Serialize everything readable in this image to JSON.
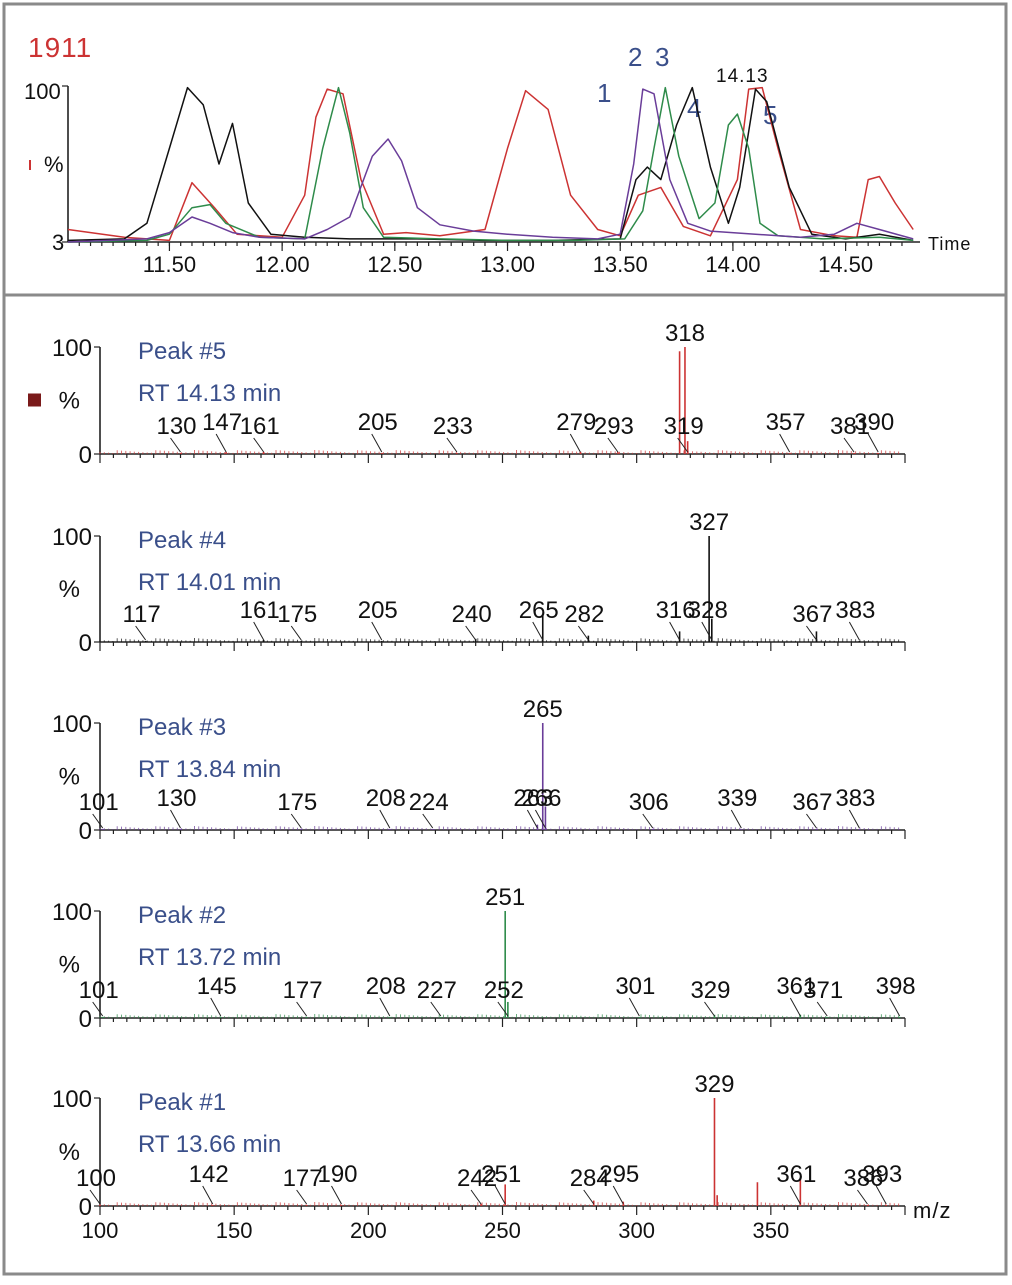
{
  "frame": {
    "border_color": "#8a8a8a"
  },
  "chromatogram": {
    "title": "1911",
    "title_color": "#cc3333",
    "y_top_label": "100",
    "y_mid_label": "%",
    "y_bottom_label": "3",
    "x_axis_label": "Time",
    "peak_number_labels": [
      "1",
      "2",
      "3",
      "4",
      "5"
    ],
    "apex_label": "14.13"
  },
  "chart_data": [
    {
      "type": "line",
      "xlabel": "Time",
      "ylabel": "%",
      "xlim": [
        11.05,
        14.83
      ],
      "ylim": [
        0,
        100
      ],
      "x_ticks": [
        "11.50",
        "12.00",
        "12.50",
        "13.00",
        "13.50",
        "14.00",
        "14.50"
      ],
      "x_tick_values": [
        11.5,
        12.0,
        12.5,
        13.0,
        13.5,
        14.0,
        14.5
      ],
      "series": [
        {
          "color": "#cc3333",
          "points": [
            [
              11.05,
              8
            ],
            [
              11.3,
              3
            ],
            [
              11.5,
              1
            ],
            [
              11.6,
              38
            ],
            [
              11.7,
              22
            ],
            [
              11.8,
              5
            ],
            [
              12.0,
              3
            ],
            [
              12.1,
              30
            ],
            [
              12.15,
              80
            ],
            [
              12.2,
              98
            ],
            [
              12.27,
              95
            ],
            [
              12.35,
              40
            ],
            [
              12.45,
              5
            ],
            [
              12.55,
              6
            ],
            [
              12.7,
              4
            ],
            [
              12.9,
              8
            ],
            [
              13.0,
              60
            ],
            [
              13.08,
              97
            ],
            [
              13.18,
              85
            ],
            [
              13.28,
              30
            ],
            [
              13.4,
              8
            ],
            [
              13.5,
              4
            ],
            [
              13.58,
              30
            ],
            [
              13.68,
              35
            ],
            [
              13.78,
              10
            ],
            [
              13.9,
              4
            ],
            [
              14.02,
              40
            ],
            [
              14.07,
              98
            ],
            [
              14.13,
              99
            ],
            [
              14.2,
              60
            ],
            [
              14.3,
              8
            ],
            [
              14.45,
              4
            ],
            [
              14.55,
              3
            ],
            [
              14.6,
              40
            ],
            [
              14.65,
              42
            ],
            [
              14.72,
              25
            ],
            [
              14.8,
              8
            ]
          ]
        },
        {
          "color": "#111111",
          "points": [
            [
              11.05,
              1
            ],
            [
              11.3,
              2
            ],
            [
              11.4,
              12
            ],
            [
              11.5,
              60
            ],
            [
              11.58,
              99
            ],
            [
              11.65,
              88
            ],
            [
              11.72,
              50
            ],
            [
              11.78,
              76
            ],
            [
              11.85,
              25
            ],
            [
              11.95,
              5
            ],
            [
              12.1,
              3
            ],
            [
              12.3,
              2
            ],
            [
              12.6,
              2
            ],
            [
              12.9,
              1
            ],
            [
              13.2,
              1
            ],
            [
              13.5,
              2
            ],
            [
              13.57,
              40
            ],
            [
              13.62,
              48
            ],
            [
              13.68,
              40
            ],
            [
              13.75,
              75
            ],
            [
              13.82,
              99
            ],
            [
              13.9,
              48
            ],
            [
              13.98,
              12
            ],
            [
              14.03,
              35
            ],
            [
              14.1,
              98
            ],
            [
              14.15,
              90
            ],
            [
              14.25,
              35
            ],
            [
              14.35,
              5
            ],
            [
              14.5,
              2
            ],
            [
              14.65,
              5
            ],
            [
              14.8,
              1
            ]
          ]
        },
        {
          "color": "#2e8b4a",
          "points": [
            [
              11.05,
              0
            ],
            [
              11.4,
              1
            ],
            [
              11.5,
              5
            ],
            [
              11.6,
              22
            ],
            [
              11.68,
              24
            ],
            [
              11.75,
              12
            ],
            [
              11.9,
              3
            ],
            [
              12.1,
              2
            ],
            [
              12.18,
              60
            ],
            [
              12.25,
              99
            ],
            [
              12.3,
              70
            ],
            [
              12.36,
              22
            ],
            [
              12.45,
              3
            ],
            [
              12.7,
              2
            ],
            [
              13.0,
              1
            ],
            [
              13.3,
              1
            ],
            [
              13.52,
              2
            ],
            [
              13.6,
              20
            ],
            [
              13.65,
              60
            ],
            [
              13.7,
              99
            ],
            [
              13.76,
              55
            ],
            [
              13.85,
              15
            ],
            [
              13.92,
              25
            ],
            [
              13.98,
              75
            ],
            [
              14.02,
              82
            ],
            [
              14.07,
              60
            ],
            [
              14.12,
              12
            ],
            [
              14.2,
              4
            ],
            [
              14.4,
              2
            ],
            [
              14.65,
              3
            ],
            [
              14.8,
              1
            ]
          ]
        },
        {
          "color": "#6a3d99",
          "points": [
            [
              11.05,
              0
            ],
            [
              11.4,
              2
            ],
            [
              11.5,
              6
            ],
            [
              11.6,
              16
            ],
            [
              11.68,
              12
            ],
            [
              11.78,
              6
            ],
            [
              11.9,
              3
            ],
            [
              12.1,
              2
            ],
            [
              12.2,
              8
            ],
            [
              12.3,
              16
            ],
            [
              12.4,
              55
            ],
            [
              12.47,
              66
            ],
            [
              12.53,
              52
            ],
            [
              12.6,
              22
            ],
            [
              12.7,
              11
            ],
            [
              12.85,
              7
            ],
            [
              13.0,
              5
            ],
            [
              13.2,
              3
            ],
            [
              13.4,
              2
            ],
            [
              13.5,
              5
            ],
            [
              13.56,
              50
            ],
            [
              13.6,
              98
            ],
            [
              13.65,
              95
            ],
            [
              13.72,
              40
            ],
            [
              13.8,
              12
            ],
            [
              13.9,
              7
            ],
            [
              14.1,
              5
            ],
            [
              14.3,
              3
            ],
            [
              14.45,
              5
            ],
            [
              14.55,
              12
            ],
            [
              14.65,
              8
            ],
            [
              14.8,
              2
            ]
          ]
        }
      ]
    },
    {
      "type": "bar",
      "label": "Peak #5",
      "rt": "RT 14.13 min",
      "color": "#cc3333",
      "ylabel": "%",
      "xlim": [
        100,
        400
      ],
      "ylim": [
        0,
        100
      ],
      "y_ticks": [
        "100",
        "%",
        "0"
      ],
      "peaks": [
        [
          130,
          1
        ],
        [
          147,
          2
        ],
        [
          161,
          2
        ],
        [
          205,
          1
        ],
        [
          233,
          1
        ],
        [
          279,
          2
        ],
        [
          293,
          2
        ],
        [
          318,
          100
        ],
        [
          316,
          96
        ],
        [
          319,
          12
        ],
        [
          357,
          1
        ],
        [
          381,
          1
        ],
        [
          390,
          1
        ]
      ],
      "labels": [
        {
          "text": "130",
          "x": 130
        },
        {
          "text": "147",
          "x": 147
        },
        {
          "text": "161",
          "x": 161
        },
        {
          "text": "205",
          "x": 205
        },
        {
          "text": "233",
          "x": 233
        },
        {
          "text": "279",
          "x": 279
        },
        {
          "text": "293",
          "x": 293
        },
        {
          "text": "318",
          "x": 318
        },
        {
          "text": "319",
          "x": 319
        },
        {
          "text": "357",
          "x": 357
        },
        {
          "text": "381",
          "x": 381
        },
        {
          "text": "390",
          "x": 390
        }
      ]
    },
    {
      "type": "bar",
      "label": "Peak #4",
      "rt": "RT 14.01 min",
      "color": "#111111",
      "ylabel": "%",
      "xlim": [
        100,
        400
      ],
      "ylim": [
        0,
        100
      ],
      "y_ticks": [
        "100",
        "%",
        "0"
      ],
      "peaks": [
        [
          117,
          1
        ],
        [
          161,
          2
        ],
        [
          175,
          1
        ],
        [
          205,
          1
        ],
        [
          240,
          3
        ],
        [
          265,
          25
        ],
        [
          282,
          6
        ],
        [
          316,
          10
        ],
        [
          327,
          100
        ],
        [
          328,
          22
        ],
        [
          367,
          10
        ],
        [
          383,
          1
        ]
      ],
      "labels": [
        {
          "text": "117",
          "x": 117
        },
        {
          "text": "161",
          "x": 161
        },
        {
          "text": "175",
          "x": 175
        },
        {
          "text": "205",
          "x": 205
        },
        {
          "text": "240",
          "x": 240
        },
        {
          "text": "265",
          "x": 265
        },
        {
          "text": "282",
          "x": 282
        },
        {
          "text": "316",
          "x": 316
        },
        {
          "text": "327",
          "x": 327
        },
        {
          "text": "328",
          "x": 328
        },
        {
          "text": "367",
          "x": 367
        },
        {
          "text": "383",
          "x": 383
        }
      ]
    },
    {
      "type": "bar",
      "label": "Peak #3",
      "rt": "RT 13.84 min",
      "color": "#6a3d99",
      "ylabel": "%",
      "xlim": [
        100,
        400
      ],
      "ylim": [
        0,
        100
      ],
      "y_ticks": [
        "100",
        "%",
        "0"
      ],
      "peaks": [
        [
          101,
          1
        ],
        [
          130,
          1
        ],
        [
          175,
          1
        ],
        [
          208,
          1
        ],
        [
          224,
          1
        ],
        [
          263,
          5
        ],
        [
          265,
          100
        ],
        [
          266,
          22
        ],
        [
          306,
          1
        ],
        [
          339,
          1
        ],
        [
          367,
          1
        ],
        [
          383,
          1
        ]
      ],
      "labels": [
        {
          "text": "101",
          "x": 101
        },
        {
          "text": "130",
          "x": 130
        },
        {
          "text": "175",
          "x": 175
        },
        {
          "text": "208",
          "x": 208
        },
        {
          "text": "224",
          "x": 224
        },
        {
          "text": "263",
          "x": 263
        },
        {
          "text": "265",
          "x": 265
        },
        {
          "text": "266",
          "x": 266
        },
        {
          "text": "306",
          "x": 306
        },
        {
          "text": "339",
          "x": 339
        },
        {
          "text": "367",
          "x": 367
        },
        {
          "text": "383",
          "x": 383
        }
      ]
    },
    {
      "type": "bar",
      "label": "Peak #2",
      "rt": "RT 13.72 min",
      "color": "#2e8b4a",
      "ylabel": "%",
      "xlim": [
        100,
        400
      ],
      "ylim": [
        0,
        100
      ],
      "y_ticks": [
        "100",
        "%",
        "0"
      ],
      "peaks": [
        [
          101,
          1
        ],
        [
          145,
          1
        ],
        [
          177,
          1
        ],
        [
          208,
          1
        ],
        [
          227,
          1
        ],
        [
          251,
          100
        ],
        [
          252,
          15
        ],
        [
          301,
          1
        ],
        [
          329,
          3
        ],
        [
          361,
          3
        ],
        [
          371,
          1
        ],
        [
          398,
          1
        ]
      ],
      "labels": [
        {
          "text": "101",
          "x": 101
        },
        {
          "text": "145",
          "x": 145
        },
        {
          "text": "177",
          "x": 177
        },
        {
          "text": "208",
          "x": 208
        },
        {
          "text": "227",
          "x": 227
        },
        {
          "text": "251",
          "x": 251
        },
        {
          "text": "252",
          "x": 252
        },
        {
          "text": "301",
          "x": 301
        },
        {
          "text": "329",
          "x": 329
        },
        {
          "text": "361",
          "x": 361
        },
        {
          "text": "371",
          "x": 371
        },
        {
          "text": "398",
          "x": 398
        }
      ]
    },
    {
      "type": "bar",
      "label": "Peak #1",
      "rt": "RT 13.66 min",
      "color": "#cc3333",
      "ylabel": "%",
      "xlabel": "m/z",
      "xlim": [
        100,
        400
      ],
      "ylim": [
        0,
        100
      ],
      "y_ticks": [
        "100",
        "%",
        "0"
      ],
      "x_ticks": [
        "100",
        "150",
        "200",
        "250",
        "300",
        "350"
      ],
      "x_tick_values": [
        100,
        150,
        200,
        250,
        300,
        350
      ],
      "peaks": [
        [
          100,
          1
        ],
        [
          142,
          1
        ],
        [
          177,
          1
        ],
        [
          190,
          1
        ],
        [
          242,
          2
        ],
        [
          251,
          20
        ],
        [
          284,
          5
        ],
        [
          295,
          4
        ],
        [
          329,
          100
        ],
        [
          330,
          10
        ],
        [
          345,
          22
        ],
        [
          361,
          25
        ],
        [
          386,
          1
        ],
        [
          393,
          1
        ]
      ],
      "labels": [
        {
          "text": "100",
          "x": 100
        },
        {
          "text": "142",
          "x": 142
        },
        {
          "text": "177",
          "x": 177
        },
        {
          "text": "190",
          "x": 190
        },
        {
          "text": "242",
          "x": 242
        },
        {
          "text": "251",
          "x": 251
        },
        {
          "text": "284",
          "x": 284
        },
        {
          "text": "295",
          "x": 295
        },
        {
          "text": "329",
          "x": 329
        },
        {
          "text": "361",
          "x": 361
        },
        {
          "text": "386",
          "x": 386
        },
        {
          "text": "393",
          "x": 393
        }
      ]
    }
  ]
}
